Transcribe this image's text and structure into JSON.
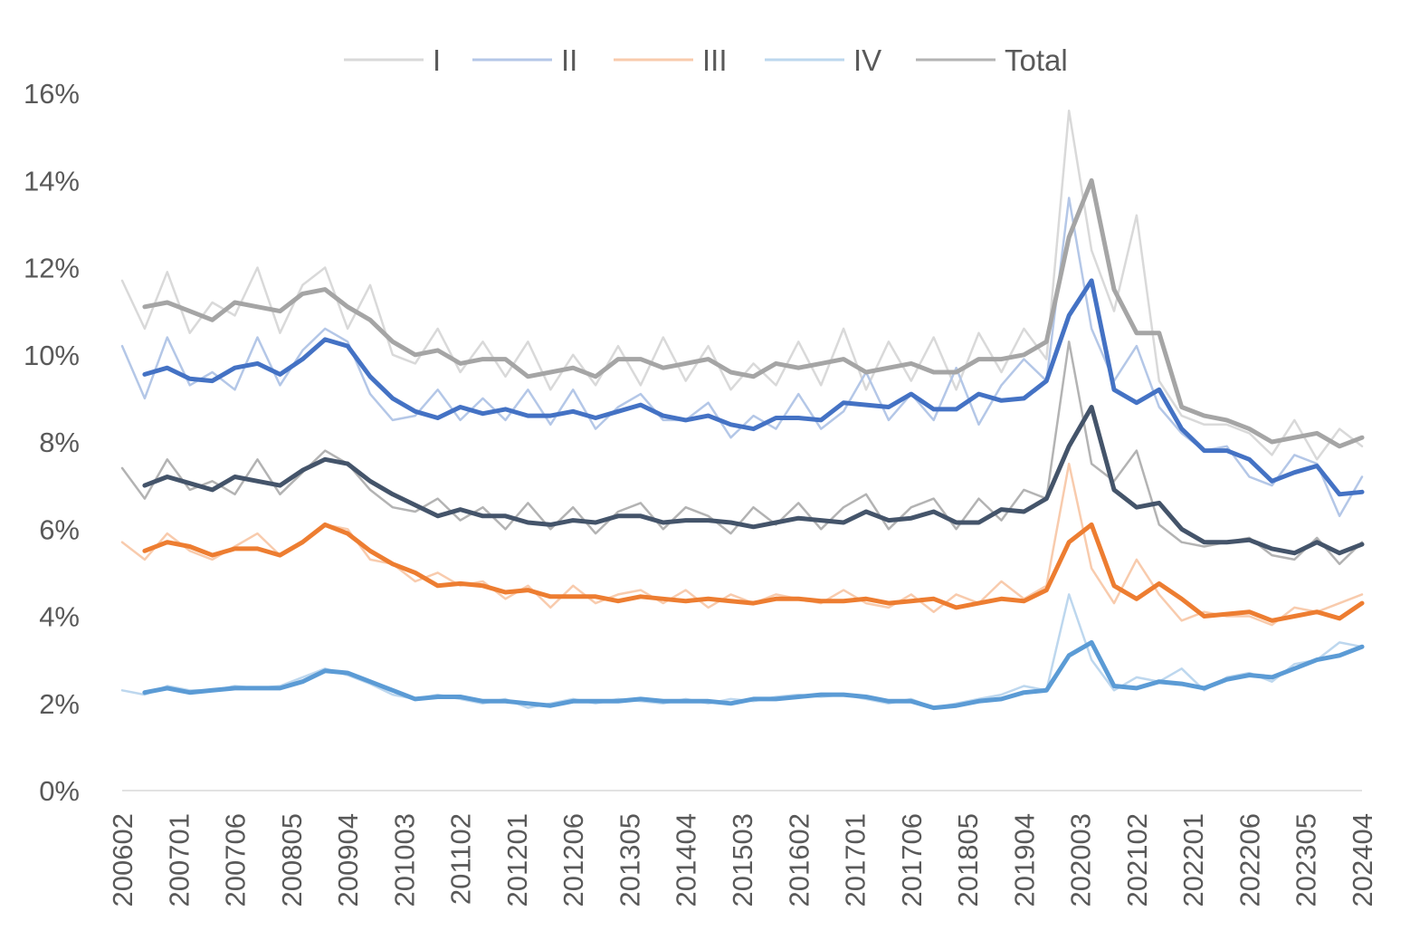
{
  "chart_data": {
    "type": "line",
    "title": "",
    "xlabel": "",
    "ylabel": "",
    "ylim": [
      0,
      16
    ],
    "y_ticks": [
      "0%",
      "2%",
      "4%",
      "6%",
      "8%",
      "10%",
      "12%",
      "14%",
      "16%"
    ],
    "y_tick_values": [
      0,
      2,
      4,
      6,
      8,
      10,
      12,
      14,
      16
    ],
    "x_tick_labels": [
      "200602",
      "200701",
      "200706",
      "200805",
      "200904",
      "201003",
      "201102",
      "201201",
      "201206",
      "201305",
      "201404",
      "201503",
      "201602",
      "201701",
      "201706",
      "201805",
      "201904",
      "202003",
      "202102",
      "202201",
      "202206",
      "202305",
      "202404"
    ],
    "x_note": "values sampled every 2 periods; tick labels every 5 periods",
    "grid": false,
    "legend_position": "top",
    "series": [
      {
        "name": "I",
        "legend": true,
        "color": "#d9d9d9",
        "width": "thin",
        "values": [
          11.7,
          10.6,
          11.9,
          10.5,
          11.2,
          10.9,
          12.0,
          10.5,
          11.6,
          12.0,
          10.6,
          11.6,
          10.0,
          9.8,
          10.6,
          9.6,
          10.3,
          9.5,
          10.3,
          9.2,
          10.0,
          9.3,
          10.2,
          9.3,
          10.4,
          9.4,
          10.2,
          9.2,
          9.8,
          9.3,
          10.3,
          9.3,
          10.6,
          9.2,
          10.3,
          9.4,
          10.4,
          9.2,
          10.5,
          9.6,
          10.6,
          9.9,
          15.6,
          12.4,
          11.0,
          13.2,
          9.4,
          8.6,
          8.4,
          8.4,
          8.2,
          7.7,
          8.5,
          7.6,
          8.3,
          7.9
        ]
      },
      {
        "name": "II",
        "legend": true,
        "color": "#b4c7e7",
        "width": "thin",
        "values": [
          10.2,
          9.0,
          10.4,
          9.3,
          9.6,
          9.2,
          10.4,
          9.3,
          10.1,
          10.6,
          10.3,
          9.1,
          8.5,
          8.6,
          9.2,
          8.5,
          9.0,
          8.5,
          9.2,
          8.4,
          9.2,
          8.3,
          8.8,
          9.1,
          8.5,
          8.5,
          8.9,
          8.1,
          8.6,
          8.3,
          9.1,
          8.3,
          8.7,
          9.6,
          8.5,
          9.1,
          8.5,
          9.7,
          8.4,
          9.3,
          9.9,
          9.4,
          13.6,
          10.6,
          9.4,
          10.2,
          8.8,
          8.2,
          7.8,
          7.9,
          7.2,
          7.0,
          7.7,
          7.5,
          6.3,
          7.2
        ]
      },
      {
        "name": "III",
        "legend": true,
        "color": "#f8cbad",
        "width": "thin",
        "values": [
          5.7,
          5.3,
          5.9,
          5.5,
          5.3,
          5.6,
          5.9,
          5.4,
          5.7,
          6.1,
          6.0,
          5.3,
          5.2,
          4.8,
          5.0,
          4.7,
          4.8,
          4.4,
          4.7,
          4.2,
          4.7,
          4.3,
          4.5,
          4.6,
          4.3,
          4.6,
          4.2,
          4.5,
          4.3,
          4.5,
          4.4,
          4.3,
          4.6,
          4.3,
          4.2,
          4.5,
          4.1,
          4.5,
          4.3,
          4.8,
          4.4,
          4.7,
          7.5,
          5.1,
          4.3,
          5.3,
          4.5,
          3.9,
          4.1,
          4.0,
          4.0,
          3.8,
          4.2,
          4.1,
          4.3,
          4.5
        ]
      },
      {
        "name": "IV",
        "legend": true,
        "color": "#bdd7ee",
        "width": "thin",
        "values": [
          2.3,
          2.2,
          2.4,
          2.3,
          2.3,
          2.4,
          2.35,
          2.4,
          2.6,
          2.8,
          2.65,
          2.45,
          2.2,
          2.1,
          2.2,
          2.1,
          2.0,
          2.1,
          1.9,
          2.0,
          2.1,
          2.0,
          2.1,
          2.05,
          2.0,
          2.1,
          2.0,
          2.1,
          2.05,
          2.15,
          2.2,
          2.15,
          2.2,
          2.1,
          2.0,
          2.1,
          1.9,
          2.0,
          2.1,
          2.2,
          2.4,
          2.3,
          4.5,
          3.0,
          2.3,
          2.6,
          2.5,
          2.8,
          2.3,
          2.6,
          2.7,
          2.5,
          2.9,
          3.0,
          3.4,
          3.3
        ]
      },
      {
        "name": "Total",
        "legend": true,
        "color": "#b3b3b3",
        "width": "thin",
        "values": [
          7.4,
          6.7,
          7.6,
          6.9,
          7.1,
          6.8,
          7.6,
          6.8,
          7.3,
          7.8,
          7.5,
          6.9,
          6.5,
          6.4,
          6.7,
          6.2,
          6.5,
          6.0,
          6.6,
          6.0,
          6.5,
          5.9,
          6.4,
          6.6,
          6.0,
          6.5,
          6.3,
          5.9,
          6.5,
          6.1,
          6.6,
          6.0,
          6.5,
          6.8,
          6.0,
          6.5,
          6.7,
          6.0,
          6.7,
          6.2,
          6.9,
          6.7,
          10.3,
          7.5,
          7.1,
          7.8,
          6.1,
          5.7,
          5.6,
          5.7,
          5.8,
          5.4,
          5.3,
          5.8,
          5.2,
          5.7
        ]
      },
      {
        "name": "I (smoothed)",
        "legend": false,
        "color": "#a5a5a5",
        "width": "thick",
        "values": [
          null,
          11.1,
          11.2,
          11.0,
          10.8,
          11.2,
          11.1,
          11.0,
          11.4,
          11.5,
          11.1,
          10.8,
          10.3,
          10.0,
          10.1,
          9.8,
          9.9,
          9.9,
          9.5,
          9.6,
          9.7,
          9.5,
          9.9,
          9.9,
          9.7,
          9.8,
          9.9,
          9.6,
          9.5,
          9.8,
          9.7,
          9.8,
          9.9,
          9.6,
          9.7,
          9.8,
          9.6,
          9.6,
          9.9,
          9.9,
          10.0,
          10.3,
          12.7,
          14.0,
          11.5,
          10.5,
          10.5,
          8.8,
          8.6,
          8.5,
          8.3,
          8.0,
          8.1,
          8.2,
          7.9,
          8.1
        ]
      },
      {
        "name": "II (smoothed)",
        "legend": false,
        "color": "#4472c4",
        "width": "thick",
        "values": [
          null,
          9.55,
          9.7,
          9.45,
          9.4,
          9.7,
          9.8,
          9.55,
          9.9,
          10.35,
          10.2,
          9.5,
          9.0,
          8.7,
          8.55,
          8.8,
          8.65,
          8.75,
          8.6,
          8.6,
          8.7,
          8.55,
          8.7,
          8.85,
          8.6,
          8.5,
          8.6,
          8.4,
          8.3,
          8.55,
          8.55,
          8.5,
          8.9,
          8.85,
          8.8,
          9.1,
          8.75,
          8.75,
          9.1,
          8.95,
          9.0,
          9.4,
          10.9,
          11.7,
          9.2,
          8.9,
          9.2,
          8.3,
          7.8,
          7.8,
          7.6,
          7.1,
          7.3,
          7.45,
          6.8,
          6.85
        ]
      },
      {
        "name": "Total (smoothed)",
        "legend": false,
        "color": "#44546a",
        "width": "thick",
        "values": [
          null,
          7.0,
          7.2,
          7.05,
          6.9,
          7.2,
          7.1,
          7.0,
          7.35,
          7.6,
          7.5,
          7.1,
          6.8,
          6.55,
          6.3,
          6.45,
          6.3,
          6.3,
          6.15,
          6.1,
          6.2,
          6.15,
          6.3,
          6.3,
          6.15,
          6.2,
          6.2,
          6.15,
          6.05,
          6.15,
          6.25,
          6.2,
          6.15,
          6.4,
          6.2,
          6.25,
          6.4,
          6.15,
          6.15,
          6.45,
          6.4,
          6.7,
          7.9,
          8.8,
          6.9,
          6.5,
          6.6,
          6.0,
          5.7,
          5.7,
          5.75,
          5.55,
          5.45,
          5.7,
          5.45,
          5.65
        ]
      },
      {
        "name": "III (smoothed)",
        "legend": false,
        "color": "#ed7d31",
        "width": "thick",
        "values": [
          null,
          5.5,
          5.7,
          5.6,
          5.4,
          5.55,
          5.55,
          5.4,
          5.7,
          6.1,
          5.9,
          5.5,
          5.2,
          5.0,
          4.7,
          4.75,
          4.7,
          4.55,
          4.6,
          4.45,
          4.45,
          4.45,
          4.35,
          4.45,
          4.4,
          4.35,
          4.4,
          4.35,
          4.3,
          4.4,
          4.4,
          4.35,
          4.35,
          4.4,
          4.3,
          4.35,
          4.4,
          4.2,
          4.3,
          4.4,
          4.35,
          4.6,
          5.7,
          6.1,
          4.7,
          4.4,
          4.75,
          4.4,
          4.0,
          4.05,
          4.1,
          3.9,
          4.0,
          4.1,
          3.95,
          4.3
        ]
      },
      {
        "name": "IV (smoothed)",
        "legend": false,
        "color": "#5b9bd5",
        "width": "thick",
        "values": [
          null,
          2.25,
          2.35,
          2.25,
          2.3,
          2.35,
          2.35,
          2.35,
          2.5,
          2.75,
          2.7,
          2.5,
          2.3,
          2.1,
          2.15,
          2.15,
          2.05,
          2.05,
          2.0,
          1.95,
          2.05,
          2.05,
          2.05,
          2.1,
          2.05,
          2.05,
          2.05,
          2.0,
          2.1,
          2.1,
          2.15,
          2.2,
          2.2,
          2.15,
          2.05,
          2.05,
          1.9,
          1.95,
          2.05,
          2.1,
          2.25,
          2.3,
          3.1,
          3.4,
          2.4,
          2.35,
          2.5,
          2.45,
          2.35,
          2.55,
          2.65,
          2.6,
          2.8,
          3.0,
          3.1,
          3.3
        ]
      }
    ]
  }
}
